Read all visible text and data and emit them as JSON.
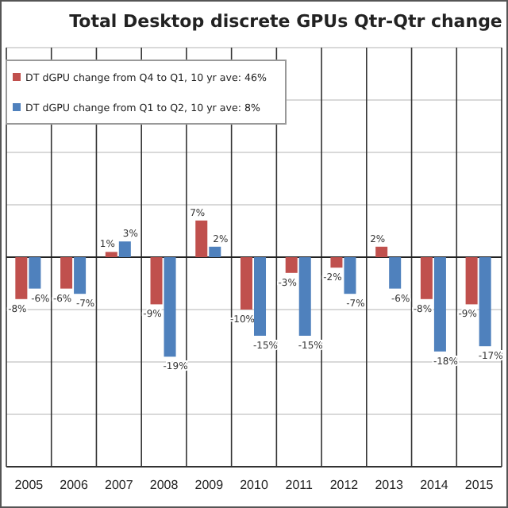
{
  "chart_data": {
    "type": "bar",
    "title": "Total Desktop discrete GPUs Qtr-Qtr change",
    "categories": [
      "2005",
      "2006",
      "2007",
      "2008",
      "2009",
      "2010",
      "2011",
      "2012",
      "2013",
      "2014",
      "2015"
    ],
    "series": [
      {
        "name": "DT dGPU change from Q4 to Q1, 10 yr ave: 46%",
        "color": "#c0504d",
        "values": [
          -8,
          -6,
          1,
          -9,
          7,
          -10,
          -3,
          -2,
          2,
          -8,
          -9
        ],
        "value_labels": [
          "-8%",
          "-6%",
          "1%",
          "-9%",
          "7%",
          "-10%",
          "-3%",
          "-2%",
          "2%",
          "-8%",
          "-9%"
        ]
      },
      {
        "name": "DT dGPU change from Q1 to Q2, 10 yr ave: 8%",
        "color": "#4f81bd",
        "values": [
          -6,
          -7,
          3,
          -19,
          2,
          -15,
          -15,
          -7,
          -6,
          -18,
          -17
        ],
        "value_labels": [
          "-6%",
          "-7%",
          "3%",
          "-19%",
          "2%",
          "-15%",
          "-15%",
          "-7%",
          "-6%",
          "-18%",
          "-17%"
        ]
      }
    ],
    "ylim": [
      -40,
      40
    ],
    "yticks": [
      {
        "value": -40,
        "label": null
      },
      {
        "value": -30,
        "label": null
      },
      {
        "value": -20,
        "label": null
      },
      {
        "value": -10,
        "label": null
      },
      {
        "value": 0,
        "label": null
      },
      {
        "value": 10,
        "label": null
      },
      {
        "value": 20,
        "label": null
      },
      {
        "value": 30,
        "label": null
      },
      {
        "value": 40,
        "label": null
      }
    ],
    "grid": true,
    "legend": "top left"
  }
}
